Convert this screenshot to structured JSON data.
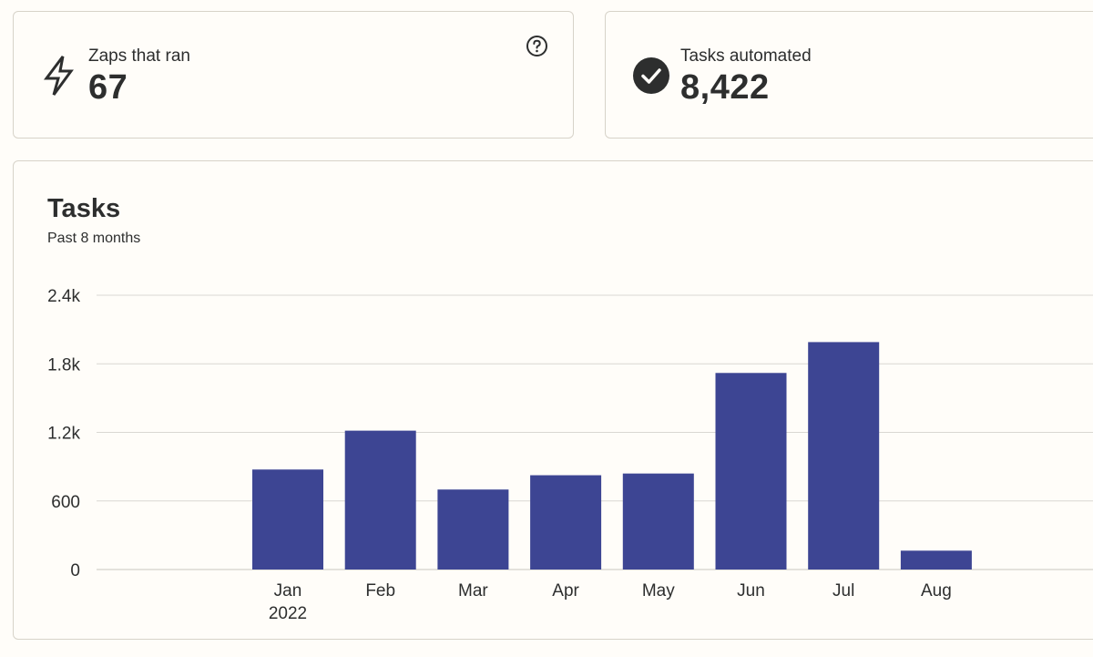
{
  "stats": [
    {
      "label": "Zaps that ran",
      "value": "67",
      "icon": "lightning-icon"
    },
    {
      "label": "Tasks automated",
      "value": "8,422",
      "icon": "check-circle-icon"
    }
  ],
  "help_icon": "question-circle-icon",
  "colors": {
    "bar": "#3d4593",
    "grid": "#d9d7d2",
    "text": "#2d2e2e",
    "border": "#d7d3c9",
    "background": "#fffdf9"
  },
  "chart_data": {
    "type": "bar",
    "title": "Tasks",
    "subtitle": "Past 8 months",
    "categories": [
      "Jan",
      "Feb",
      "Mar",
      "Apr",
      "May",
      "Jun",
      "Jul",
      "Aug"
    ],
    "category_sublabels": [
      "2022",
      "",
      "",
      "",
      "",
      "",
      "",
      ""
    ],
    "values": [
      875,
      1215,
      700,
      825,
      840,
      1720,
      1990,
      165
    ],
    "y_ticks": [
      0,
      600,
      1200,
      1800,
      2400
    ],
    "y_tick_labels": [
      "0",
      "600",
      "1.2k",
      "1.8k",
      "2.4k"
    ],
    "ylim": [
      0,
      2400
    ],
    "xlabel": "",
    "ylabel": "",
    "grid": true
  }
}
